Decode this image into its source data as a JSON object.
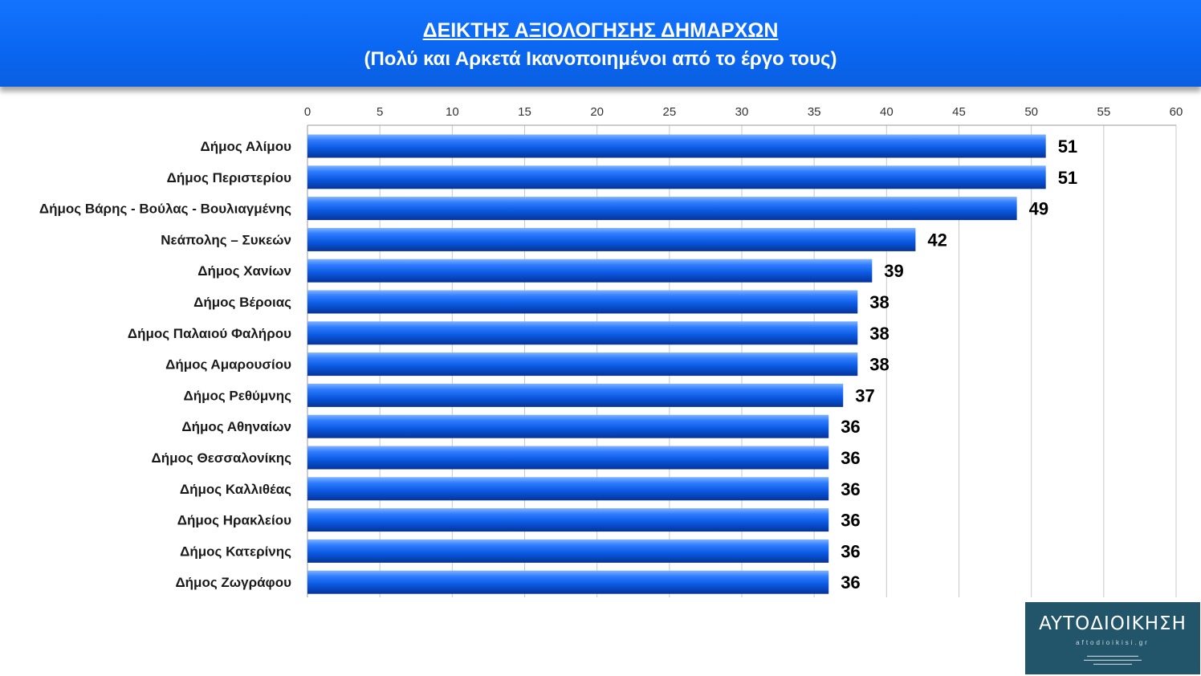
{
  "header": {
    "title": "ΔΕΙΚΤΗΣ ΑΞΙΟΛΟΓΗΣΗΣ ΔΗΜΑΡΧΩΝ",
    "subtitle": "(Πολύ και Αρκετά Ικανοποιημένοι από το έργο τους)"
  },
  "chart_data": {
    "type": "bar",
    "orientation": "horizontal",
    "title": "ΔΕΙΚΤΗΣ ΑΞΙΟΛΟΓΗΣΗΣ ΔΗΜΑΡΧΩΝ",
    "subtitle": "(Πολύ και Αρκετά Ικανοποιημένοι από το έργο τους)",
    "xlabel": "",
    "ylabel": "",
    "xlim": [
      0,
      60
    ],
    "xticks": [
      "0",
      "5",
      "10",
      "15",
      "20",
      "25",
      "30",
      "35",
      "40",
      "45",
      "50",
      "55",
      "60"
    ],
    "axis_position": "top",
    "grid": true,
    "bar_color": "#0a5fe8",
    "categories": [
      "Δήμος Αλίμου",
      "Δήμος Περιστερίου",
      "Δήμος Βάρης - Βούλας - Βουλιαγμένης",
      "Νεάπολης – Συκεών",
      "Δήμος Χανίων",
      "Δήμος Βέροιας",
      "Δήμος Παλαιού Φαλήρου",
      "Δήμος Αμαρουσίου",
      "Δήμος Ρεθύμνης",
      "Δήμος Αθηναίων",
      "Δήμος Θεσσαλονίκης",
      "Δήμος Καλλιθέας",
      "Δήμος Ηρακλείου",
      "Δήμος Κατερίνης",
      "Δήμος Ζωγράφου"
    ],
    "values": [
      51,
      51,
      49,
      42,
      39,
      38,
      38,
      38,
      37,
      36,
      36,
      36,
      36,
      36,
      36
    ],
    "value_labels": [
      "51",
      "51",
      "49",
      "42",
      "39",
      "38",
      "38",
      "38",
      "37",
      "36",
      "36",
      "36",
      "36",
      "36",
      "36"
    ]
  },
  "logo": {
    "brand": "AYTOΔΙΟΙΚΗΣΗ",
    "domain": "aftodioikisi.gr"
  }
}
